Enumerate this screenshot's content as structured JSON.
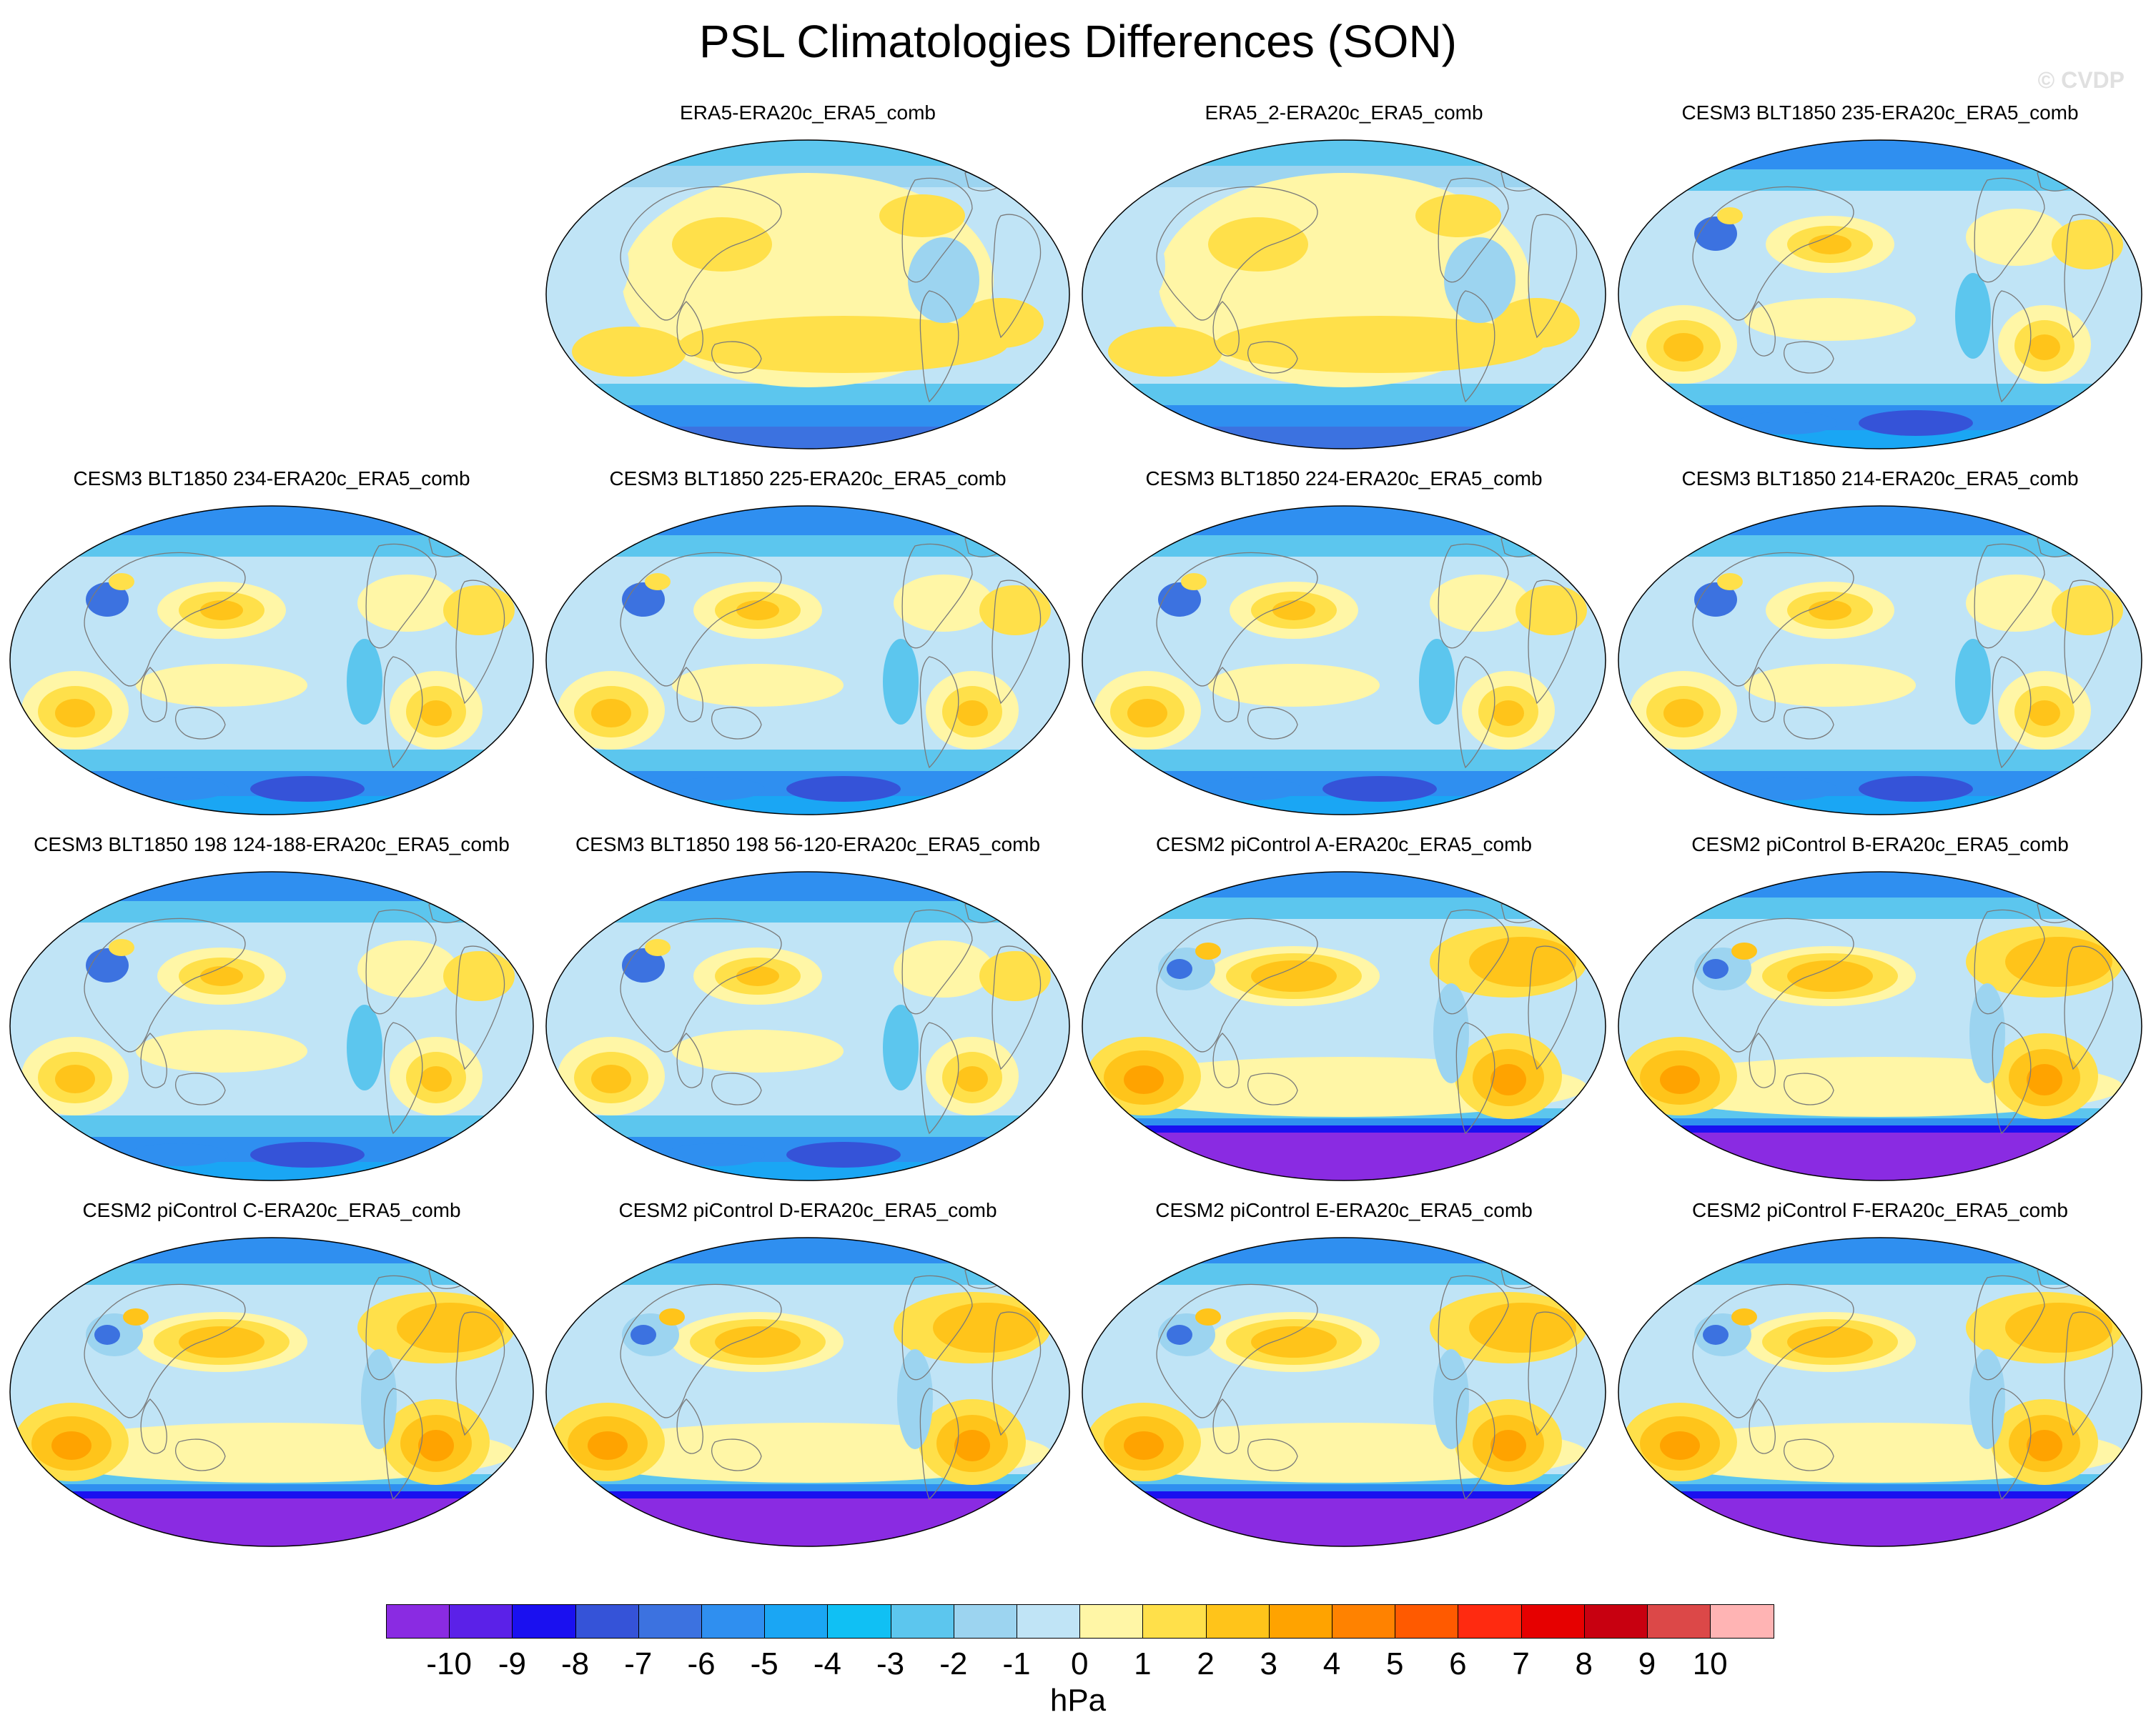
{
  "title": "PSL Climatologies Differences (SON)",
  "watermark": "© CVDP",
  "units": "hPa",
  "colorbar": {
    "labels": [
      "-10",
      "-9",
      "-8",
      "-7",
      "-6",
      "-5",
      "-4",
      "-3",
      "-2",
      "-1",
      "0",
      "1",
      "2",
      "3",
      "4",
      "5",
      "6",
      "7",
      "8",
      "9",
      "10"
    ],
    "colors": [
      "#8a2be2",
      "#5b21e8",
      "#1a10f0",
      "#3553d8",
      "#3c72e0",
      "#2f8ff0",
      "#1aa6f4",
      "#10c0f4",
      "#5cc6ee",
      "#9cd4f0",
      "#c0e4f6",
      "#fff6a6",
      "#ffe04a",
      "#ffc41a",
      "#ffa300",
      "#ff8200",
      "#ff5a00",
      "#ff2a10",
      "#e60000",
      "#c80010",
      "#dc4848",
      "#ffb4b4"
    ]
  },
  "panels": [
    {
      "title": "ERA5-ERA20c_ERA5_comb",
      "style": "era"
    },
    {
      "title": "ERA5_2-ERA20c_ERA5_comb",
      "style": "era"
    },
    {
      "title": "CESM3 BLT1850 235-ERA20c_ERA5_comb",
      "style": "cesm3"
    },
    {
      "title": "CESM3 BLT1850 234-ERA20c_ERA5_comb",
      "style": "cesm3"
    },
    {
      "title": "CESM3 BLT1850 225-ERA20c_ERA5_comb",
      "style": "cesm3"
    },
    {
      "title": "CESM3 BLT1850 224-ERA20c_ERA5_comb",
      "style": "cesm3"
    },
    {
      "title": "CESM3 BLT1850 214-ERA20c_ERA5_comb",
      "style": "cesm3"
    },
    {
      "title": "CESM3 BLT1850 198 124-188-ERA20c_ERA5_comb",
      "style": "cesm3"
    },
    {
      "title": "CESM3 BLT1850 198 56-120-ERA20c_ERA5_comb",
      "style": "cesm3"
    },
    {
      "title": "CESM2 piControl A-ERA20c_ERA5_comb",
      "style": "cesm2"
    },
    {
      "title": "CESM2 piControl B-ERA20c_ERA5_comb",
      "style": "cesm2"
    },
    {
      "title": "CESM2 piControl C-ERA20c_ERA5_comb",
      "style": "cesm2"
    },
    {
      "title": "CESM2 piControl D-ERA20c_ERA5_comb",
      "style": "cesm2"
    },
    {
      "title": "CESM2 piControl E-ERA20c_ERA5_comb",
      "style": "cesm2"
    },
    {
      "title": "CESM2 piControl F-ERA20c_ERA5_comb",
      "style": "cesm2"
    }
  ]
}
